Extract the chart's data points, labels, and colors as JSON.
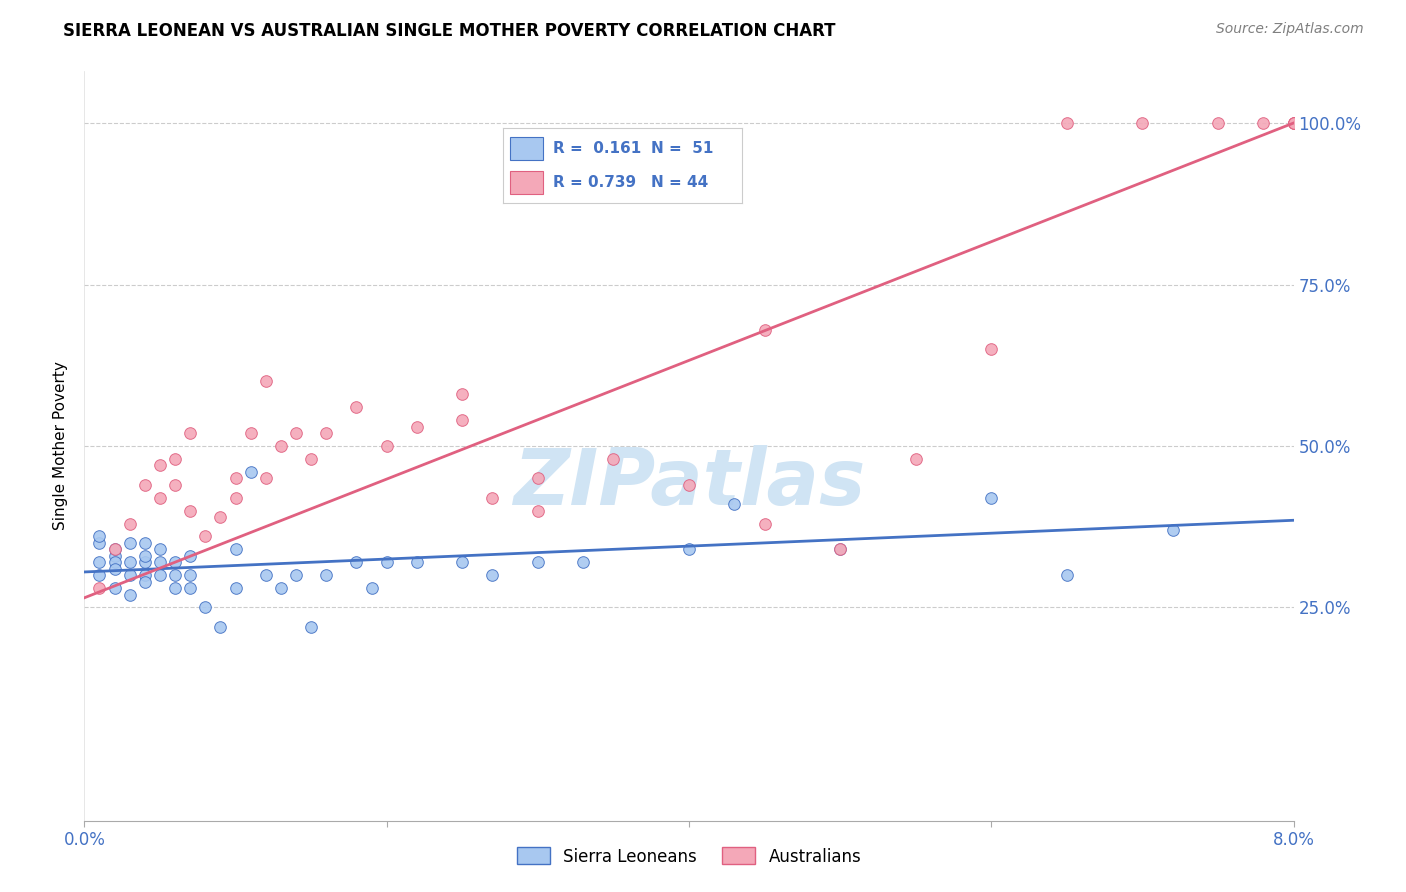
{
  "title": "SIERRA LEONEAN VS AUSTRALIAN SINGLE MOTHER POVERTY CORRELATION CHART",
  "source": "Source: ZipAtlas.com",
  "ylabel": "Single Mother Poverty",
  "xlim": [
    0.0,
    0.08
  ],
  "ylim": [
    -0.08,
    1.08
  ],
  "blue_R": 0.161,
  "blue_N": 51,
  "pink_R": 0.739,
  "pink_N": 44,
  "blue_color": "#A8C8F0",
  "pink_color": "#F4A8B8",
  "blue_line_color": "#4472C4",
  "pink_line_color": "#E06080",
  "watermark": "ZIPatlas",
  "watermark_color": "#D0E4F4",
  "legend_label_blue": "Sierra Leoneans",
  "legend_label_pink": "Australians",
  "title_fontsize": 12,
  "axis_label_color": "#4472C4",
  "grid_color": "#CCCCCC",
  "blue_scatter_x": [
    0.001,
    0.001,
    0.001,
    0.001,
    0.002,
    0.002,
    0.002,
    0.002,
    0.002,
    0.003,
    0.003,
    0.003,
    0.003,
    0.004,
    0.004,
    0.004,
    0.004,
    0.004,
    0.005,
    0.005,
    0.005,
    0.006,
    0.006,
    0.006,
    0.007,
    0.007,
    0.007,
    0.008,
    0.009,
    0.01,
    0.01,
    0.011,
    0.012,
    0.013,
    0.014,
    0.015,
    0.016,
    0.018,
    0.019,
    0.02,
    0.022,
    0.025,
    0.027,
    0.03,
    0.033,
    0.04,
    0.043,
    0.05,
    0.06,
    0.065,
    0.072
  ],
  "blue_scatter_y": [
    0.32,
    0.35,
    0.3,
    0.36,
    0.33,
    0.28,
    0.32,
    0.34,
    0.31,
    0.35,
    0.3,
    0.32,
    0.27,
    0.32,
    0.35,
    0.3,
    0.33,
    0.29,
    0.32,
    0.34,
    0.3,
    0.32,
    0.3,
    0.28,
    0.33,
    0.3,
    0.28,
    0.25,
    0.22,
    0.34,
    0.28,
    0.46,
    0.3,
    0.28,
    0.3,
    0.22,
    0.3,
    0.32,
    0.28,
    0.32,
    0.32,
    0.32,
    0.3,
    0.32,
    0.32,
    0.34,
    0.41,
    0.34,
    0.42,
    0.3,
    0.37
  ],
  "pink_scatter_x": [
    0.001,
    0.002,
    0.003,
    0.004,
    0.005,
    0.005,
    0.006,
    0.006,
    0.007,
    0.007,
    0.008,
    0.009,
    0.01,
    0.01,
    0.011,
    0.012,
    0.013,
    0.014,
    0.015,
    0.016,
    0.018,
    0.02,
    0.022,
    0.025,
    0.025,
    0.027,
    0.03,
    0.035,
    0.04,
    0.045,
    0.05,
    0.06,
    0.065,
    0.07,
    0.075,
    0.078,
    0.08,
    0.08,
    0.08,
    0.08,
    0.012,
    0.03,
    0.045,
    0.055
  ],
  "pink_scatter_y": [
    0.28,
    0.34,
    0.38,
    0.44,
    0.47,
    0.42,
    0.48,
    0.44,
    0.4,
    0.52,
    0.36,
    0.39,
    0.42,
    0.45,
    0.52,
    0.45,
    0.5,
    0.52,
    0.48,
    0.52,
    0.56,
    0.5,
    0.53,
    0.58,
    0.54,
    0.42,
    0.4,
    0.48,
    0.44,
    0.38,
    0.34,
    0.65,
    1.0,
    1.0,
    1.0,
    1.0,
    1.0,
    1.0,
    1.0,
    1.0,
    0.6,
    0.45,
    0.68,
    0.48
  ],
  "blue_trend_x": [
    0.0,
    0.08
  ],
  "blue_trend_y": [
    0.305,
    0.385
  ],
  "pink_trend_x": [
    0.0,
    0.08
  ],
  "pink_trend_y": [
    0.265,
    1.0
  ]
}
